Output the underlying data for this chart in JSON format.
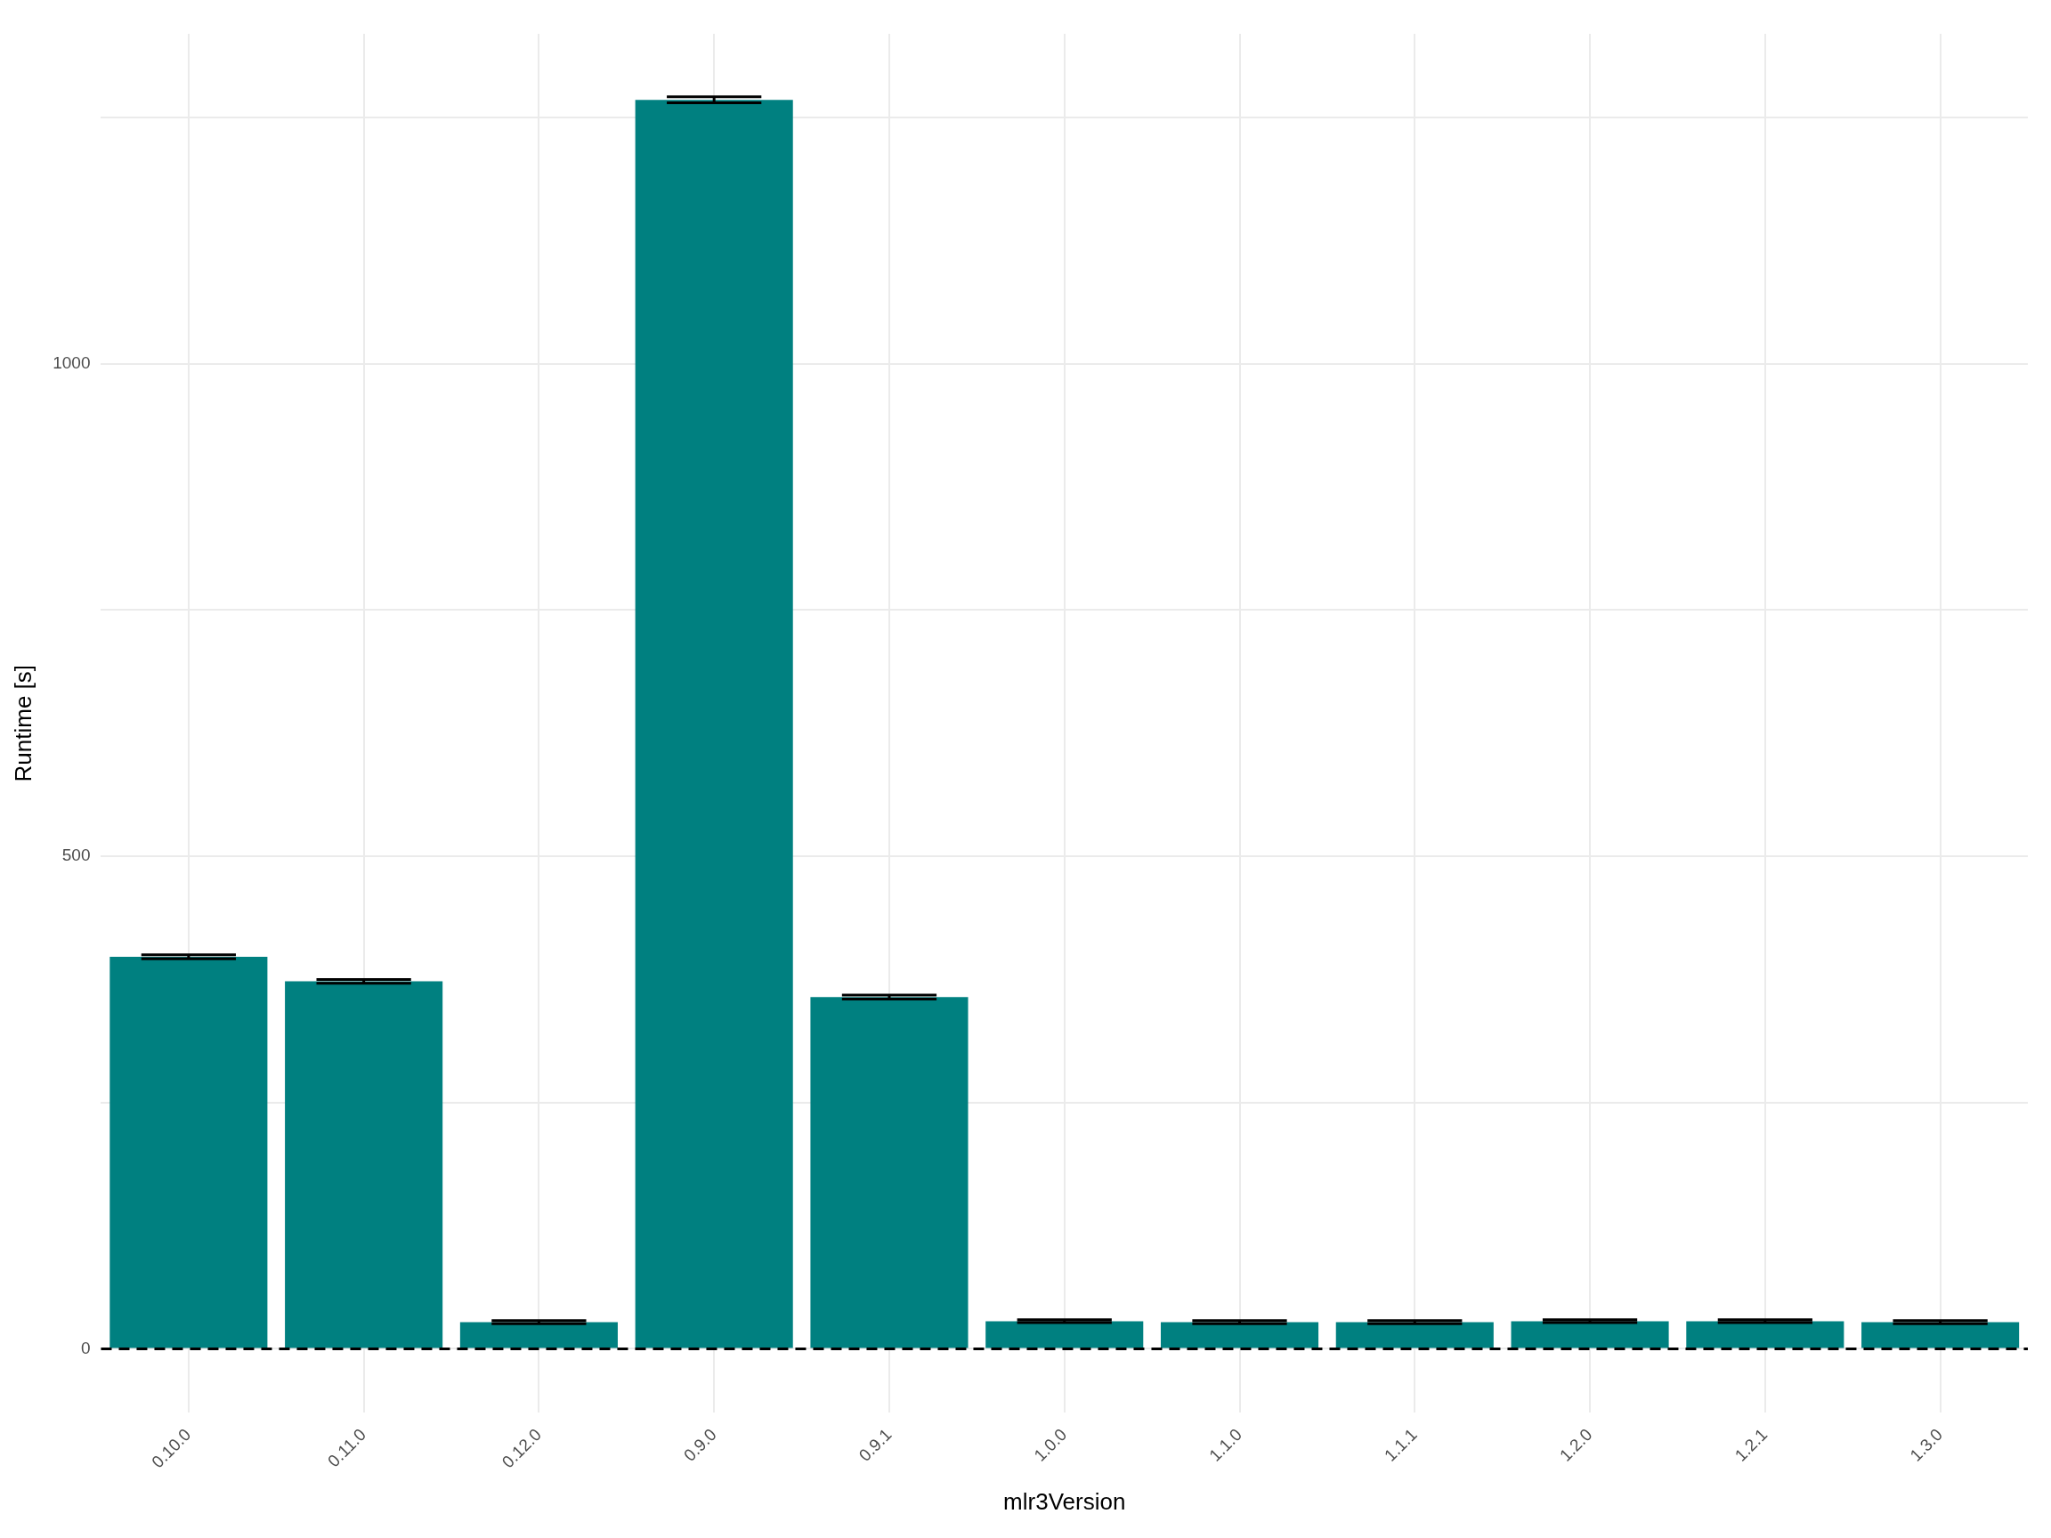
{
  "chart_data": {
    "type": "bar",
    "xlabel": "mlr3Version",
    "ylabel": "Runtime [s]",
    "categories": [
      "0.10.0",
      "0.11.0",
      "0.12.0",
      "0.9.0",
      "0.9.1",
      "1.0.0",
      "1.1.0",
      "1.1.1",
      "1.2.0",
      "1.2.1",
      "1.3.0"
    ],
    "values": [
      398,
      373,
      27,
      1268,
      357,
      28,
      27,
      27,
      28,
      28,
      27
    ],
    "errors": [
      2,
      2,
      1.5,
      3,
      2,
      1.5,
      1.5,
      1.5,
      1.5,
      1.5,
      1.5
    ],
    "color": "#008080",
    "ylim": [
      -65,
      1335
    ],
    "yticks": [
      0,
      {
        "value": 250,
        "label": null
      },
      500,
      {
        "value": 750,
        "label": null
      },
      1000,
      {
        "value": 1250,
        "label": null
      }
    ],
    "grid": true,
    "ref_lines": [
      {
        "axis": "y",
        "value": 0,
        "color": "#000000",
        "line_style": "dashed"
      }
    ]
  }
}
